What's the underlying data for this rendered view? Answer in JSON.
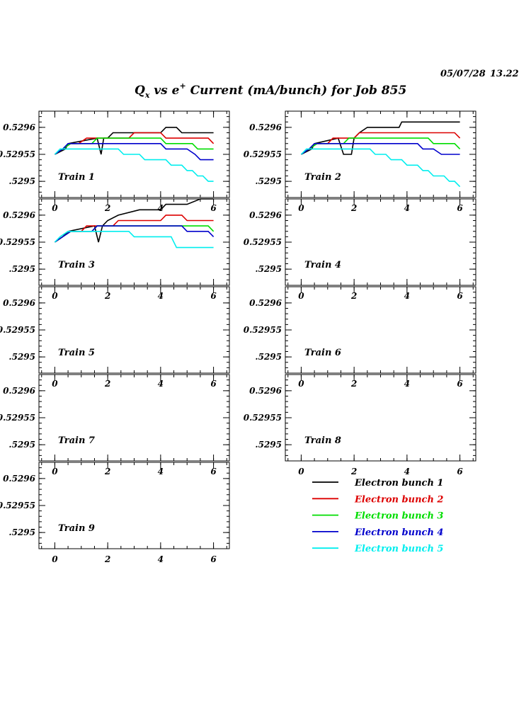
{
  "header": {
    "date_stamp": "05/07/28",
    "time_stamp": "13.22",
    "title_q": "Q",
    "title_q_sub": "x",
    "title_vs": " vs e",
    "title_sup": "+",
    "title_rest": " Current (mA/bunch) for Job 855"
  },
  "chart_data": {
    "type": "line",
    "title": "Q_x vs e+ Current (mA/bunch) for Job 855",
    "xlim": [
      -0.6,
      6.6
    ],
    "ylim": [
      0.52947,
      0.52963
    ],
    "x_ticks": [
      0,
      2,
      4,
      6
    ],
    "x_tick_labels": [
      "0",
      "2",
      "4",
      "6"
    ],
    "y_ticks": [
      0.5295,
      0.52955,
      0.5296
    ],
    "y_tick_labels": [
      ".5295",
      "0.52955",
      "0.5296"
    ],
    "legend": [
      {
        "name": "Electron bunch 1",
        "color": "#000000"
      },
      {
        "name": "Electron bunch 2",
        "color": "#dd0000"
      },
      {
        "name": "Electron bunch 3",
        "color": "#00dd00"
      },
      {
        "name": "Electron bunch 4",
        "color": "#0000cc"
      },
      {
        "name": "Electron bunch 5",
        "color": "#00eeee"
      }
    ],
    "panels": [
      {
        "label": "Train 1",
        "series": [
          {
            "name": "Electron bunch 1",
            "x": [
              0,
              0.4,
              0.5,
              1.6,
              1.75,
              1.85,
              2.0,
              2.2,
              3.0,
              4.0,
              4.2,
              4.6,
              4.8,
              6.0
            ],
            "y": [
              0.52955,
              0.52956,
              0.52957,
              0.52958,
              0.52955,
              0.52958,
              0.52958,
              0.52959,
              0.52959,
              0.52959,
              0.5296,
              0.5296,
              0.52959,
              0.52959
            ]
          },
          {
            "name": "Electron bunch 2",
            "x": [
              0,
              0.3,
              0.6,
              0.9,
              1.2,
              2.0,
              2.8,
              3.0,
              4.0,
              4.2,
              5.8,
              6.0
            ],
            "y": [
              0.52955,
              0.52956,
              0.52957,
              0.52957,
              0.52958,
              0.52958,
              0.52958,
              0.52959,
              0.52959,
              0.52958,
              0.52958,
              0.52957
            ]
          },
          {
            "name": "Electron bunch 3",
            "x": [
              0,
              0.3,
              0.6,
              1.4,
              1.6,
              4.0,
              4.2,
              5.2,
              5.4,
              6.0
            ],
            "y": [
              0.52955,
              0.52956,
              0.52957,
              0.52957,
              0.52958,
              0.52958,
              0.52957,
              0.52957,
              0.52956,
              0.52956
            ]
          },
          {
            "name": "Electron bunch 4",
            "x": [
              0,
              0.3,
              0.5,
              4.0,
              4.2,
              5.0,
              5.3,
              5.5,
              6.0
            ],
            "y": [
              0.52955,
              0.52956,
              0.52957,
              0.52957,
              0.52956,
              0.52956,
              0.52955,
              0.52954,
              0.52954
            ]
          },
          {
            "name": "Electron bunch 5",
            "x": [
              0,
              0.2,
              0.5,
              2.4,
              2.6,
              3.2,
              3.4,
              4.2,
              4.4,
              4.8,
              5.0,
              5.2,
              5.4,
              5.6,
              5.8,
              6.0
            ],
            "y": [
              0.52955,
              0.52956,
              0.52956,
              0.52956,
              0.52955,
              0.52955,
              0.52954,
              0.52954,
              0.52953,
              0.52953,
              0.52952,
              0.52952,
              0.52951,
              0.52951,
              0.5295,
              0.5295
            ]
          }
        ]
      },
      {
        "label": "Train 2",
        "series": [
          {
            "name": "Electron bunch 1",
            "x": [
              0,
              0.4,
              0.5,
              1.4,
              1.6,
              1.9,
              2.0,
              2.2,
              2.5,
              3.7,
              3.8,
              6.0
            ],
            "y": [
              0.52955,
              0.52956,
              0.52957,
              0.52958,
              0.52955,
              0.52955,
              0.52958,
              0.52959,
              0.5296,
              0.5296,
              0.52961,
              0.52961
            ]
          },
          {
            "name": "Electron bunch 2",
            "x": [
              0,
              0.3,
              0.6,
              1.0,
              1.2,
              2.0,
              2.2,
              5.8,
              6.0
            ],
            "y": [
              0.52955,
              0.52956,
              0.52957,
              0.52957,
              0.52958,
              0.52958,
              0.52959,
              0.52959,
              0.52958
            ]
          },
          {
            "name": "Electron bunch 3",
            "x": [
              0,
              0.3,
              0.6,
              1.6,
              1.8,
              4.8,
              5.0,
              5.8,
              6.0
            ],
            "y": [
              0.52955,
              0.52956,
              0.52957,
              0.52957,
              0.52958,
              0.52958,
              0.52957,
              0.52957,
              0.52956
            ]
          },
          {
            "name": "Electron bunch 4",
            "x": [
              0,
              0.3,
              0.5,
              4.4,
              4.6,
              5.0,
              5.3,
              6.0
            ],
            "y": [
              0.52955,
              0.52956,
              0.52957,
              0.52957,
              0.52956,
              0.52956,
              0.52955,
              0.52955
            ]
          },
          {
            "name": "Electron bunch 5",
            "x": [
              0,
              0.2,
              0.5,
              2.6,
              2.8,
              3.2,
              3.4,
              3.8,
              4.0,
              4.4,
              4.6,
              4.8,
              5.0,
              5.4,
              5.6,
              5.8,
              6.0
            ],
            "y": [
              0.52955,
              0.52956,
              0.52956,
              0.52956,
              0.52955,
              0.52955,
              0.52954,
              0.52954,
              0.52953,
              0.52953,
              0.52952,
              0.52952,
              0.52951,
              0.52951,
              0.5295,
              0.5295,
              0.52949
            ]
          }
        ]
      },
      {
        "label": "Train 3",
        "series": [
          {
            "name": "Electron bunch 1",
            "x": [
              0,
              0.3,
              0.5,
              1.5,
              1.65,
              1.8,
              2.0,
              2.4,
              3.2,
              4.0,
              4.2,
              5.0,
              5.5,
              6.0
            ],
            "y": [
              0.52955,
              0.52956,
              0.52957,
              0.52958,
              0.52955,
              0.52958,
              0.52959,
              0.5296,
              0.52961,
              0.52961,
              0.52962,
              0.52962,
              0.52963,
              0.52963
            ]
          },
          {
            "name": "Electron bunch 2",
            "x": [
              0,
              0.3,
              0.6,
              1.0,
              1.2,
              2.2,
              2.4,
              3.2,
              3.4,
              4.0,
              4.2,
              4.8,
              5.0,
              6.0
            ],
            "y": [
              0.52955,
              0.52956,
              0.52957,
              0.52957,
              0.52958,
              0.52958,
              0.52959,
              0.52959,
              0.52959,
              0.52959,
              0.5296,
              0.5296,
              0.52959,
              0.52959
            ]
          },
          {
            "name": "Electron bunch 3",
            "x": [
              0,
              0.3,
              0.6,
              1.4,
              1.6,
              5.8,
              6.0
            ],
            "y": [
              0.52955,
              0.52956,
              0.52957,
              0.52957,
              0.52958,
              0.52958,
              0.52957
            ]
          },
          {
            "name": "Electron bunch 4",
            "x": [
              0,
              0.3,
              0.6,
              1.4,
              1.6,
              4.8,
              5.0,
              5.8,
              6.0
            ],
            "y": [
              0.52955,
              0.52956,
              0.52957,
              0.52957,
              0.52958,
              0.52958,
              0.52957,
              0.52957,
              0.52956
            ]
          },
          {
            "name": "Electron bunch 5",
            "x": [
              0,
              0.2,
              0.5,
              2.8,
              3.0,
              4.4,
              4.6,
              5.8,
              6.0
            ],
            "y": [
              0.52955,
              0.52956,
              0.52957,
              0.52957,
              0.52956,
              0.52956,
              0.52954,
              0.52954,
              0.52954
            ]
          }
        ]
      },
      {
        "label": "Train 4",
        "series": []
      },
      {
        "label": "Train 5",
        "series": []
      },
      {
        "label": "Train 6",
        "series": []
      },
      {
        "label": "Train 7",
        "series": []
      },
      {
        "label": "Train 8",
        "series": []
      },
      {
        "label": "Train 9",
        "series": []
      }
    ]
  }
}
